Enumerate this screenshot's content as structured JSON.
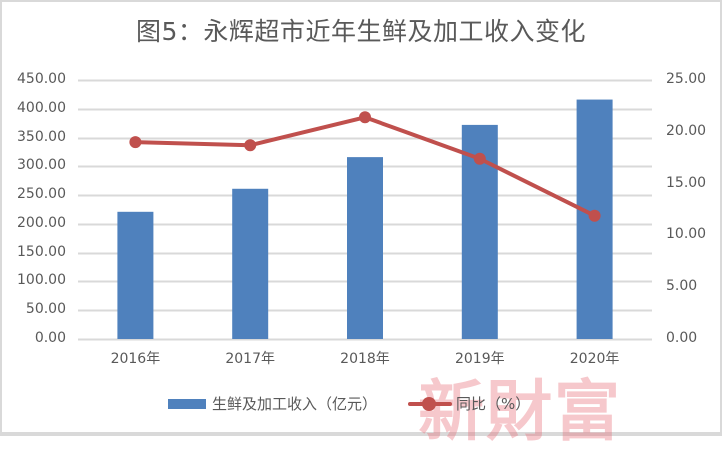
{
  "chart_data": {
    "type": "bar+line",
    "title": "图5：永辉超市近年生鲜及加工收入变化",
    "categories": [
      "2016年",
      "2017年",
      "2018年",
      "2019年",
      "2020年"
    ],
    "series": [
      {
        "name": "生鲜及加工收入（亿元）",
        "type": "bar",
        "axis": "left",
        "color": "#4f81bd",
        "values": [
          221,
          261,
          316,
          372,
          416
        ]
      },
      {
        "name": "同比（%）",
        "type": "line",
        "axis": "right",
        "color": "#c0504d",
        "values": [
          19.0,
          18.7,
          21.4,
          17.4,
          11.9
        ]
      }
    ],
    "left_axis": {
      "min": 0,
      "max": 450,
      "step": 50,
      "ticks": [
        "0.00",
        "50.00",
        "100.00",
        "150.00",
        "200.00",
        "250.00",
        "300.00",
        "350.00",
        "400.00",
        "450.00"
      ]
    },
    "right_axis": {
      "min": 0,
      "max": 25,
      "step": 5,
      "ticks": [
        "0.00",
        "5.00",
        "10.00",
        "15.00",
        "20.00",
        "25.00"
      ]
    },
    "grid": true,
    "legend_position": "bottom",
    "xlabel": "",
    "ylabel": ""
  },
  "legend": {
    "bar_label": "生鲜及加工收入（亿元）",
    "line_label": "同比（%）"
  },
  "watermark": "新財富"
}
